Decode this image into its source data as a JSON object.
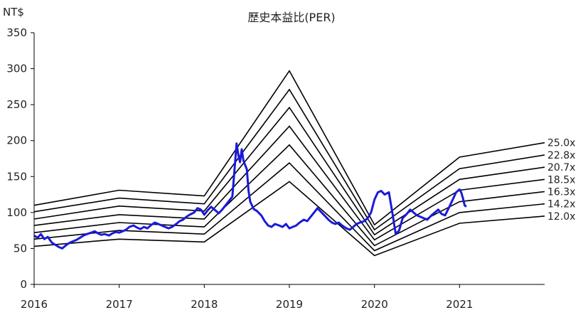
{
  "chart_data": {
    "type": "line",
    "title": "歷史本益比(PER)",
    "ylabel": "NT$",
    "xlabel": "",
    "ylim": [
      0,
      350
    ],
    "yticks": [
      0,
      50,
      100,
      150,
      200,
      250,
      300,
      350
    ],
    "xlim": [
      2016,
      2022
    ],
    "xticks": [
      2016,
      2017,
      2018,
      2019,
      2020,
      2021
    ],
    "grid": false,
    "legend": "none",
    "colors": {
      "price": "#1a1adb",
      "bands": "#000000",
      "axis": "#000000"
    },
    "bands": [
      {
        "name": "25.0x",
        "points": [
          [
            2016,
            110
          ],
          [
            2017,
            131
          ],
          [
            2018,
            123
          ],
          [
            2019,
            297
          ],
          [
            2020,
            83
          ],
          [
            2021,
            177
          ],
          [
            2022,
            197
          ]
        ]
      },
      {
        "name": "22.8x",
        "points": [
          [
            2016,
            101
          ],
          [
            2017,
            120
          ],
          [
            2018,
            112
          ],
          [
            2019,
            271
          ],
          [
            2020,
            76
          ],
          [
            2021,
            161
          ],
          [
            2022,
            180
          ]
        ]
      },
      {
        "name": "20.7x",
        "points": [
          [
            2016,
            91
          ],
          [
            2017,
            109
          ],
          [
            2018,
            102
          ],
          [
            2019,
            246
          ],
          [
            2020,
            69
          ],
          [
            2021,
            146
          ],
          [
            2022,
            163
          ]
        ]
      },
      {
        "name": "18.5x",
        "points": [
          [
            2016,
            82
          ],
          [
            2017,
            97
          ],
          [
            2018,
            91
          ],
          [
            2019,
            220
          ],
          [
            2020,
            62
          ],
          [
            2021,
            131
          ],
          [
            2022,
            146
          ]
        ]
      },
      {
        "name": "16.3x",
        "points": [
          [
            2016,
            72
          ],
          [
            2017,
            86
          ],
          [
            2018,
            80
          ],
          [
            2019,
            194
          ],
          [
            2020,
            54
          ],
          [
            2021,
            115
          ],
          [
            2022,
            129
          ]
        ]
      },
      {
        "name": "14.2x",
        "points": [
          [
            2016,
            63
          ],
          [
            2017,
            75
          ],
          [
            2018,
            70
          ],
          [
            2019,
            169
          ],
          [
            2020,
            47
          ],
          [
            2021,
            100
          ],
          [
            2022,
            112
          ]
        ]
      },
      {
        "name": "12.0x",
        "points": [
          [
            2016,
            53
          ],
          [
            2017,
            63
          ],
          [
            2018,
            59
          ],
          [
            2019,
            143
          ],
          [
            2020,
            40
          ],
          [
            2021,
            85
          ],
          [
            2022,
            95
          ]
        ]
      }
    ],
    "price_series": {
      "points": [
        [
          2016.0,
          68
        ],
        [
          2016.04,
          65
        ],
        [
          2016.08,
          70
        ],
        [
          2016.12,
          63
        ],
        [
          2016.16,
          66
        ],
        [
          2016.21,
          58
        ],
        [
          2016.25,
          55
        ],
        [
          2016.29,
          52
        ],
        [
          2016.33,
          50
        ],
        [
          2016.38,
          55
        ],
        [
          2016.42,
          58
        ],
        [
          2016.46,
          60
        ],
        [
          2016.5,
          62
        ],
        [
          2016.54,
          65
        ],
        [
          2016.58,
          68
        ],
        [
          2016.62,
          70
        ],
        [
          2016.67,
          72
        ],
        [
          2016.71,
          74
        ],
        [
          2016.75,
          71
        ],
        [
          2016.79,
          69
        ],
        [
          2016.83,
          70
        ],
        [
          2016.88,
          68
        ],
        [
          2016.92,
          71
        ],
        [
          2016.96,
          73
        ],
        [
          2017.0,
          72
        ],
        [
          2017.04,
          74
        ],
        [
          2017.08,
          76
        ],
        [
          2017.12,
          80
        ],
        [
          2017.17,
          82
        ],
        [
          2017.21,
          79
        ],
        [
          2017.25,
          77
        ],
        [
          2017.29,
          80
        ],
        [
          2017.33,
          78
        ],
        [
          2017.38,
          83
        ],
        [
          2017.42,
          86
        ],
        [
          2017.46,
          84
        ],
        [
          2017.5,
          82
        ],
        [
          2017.54,
          80
        ],
        [
          2017.58,
          78
        ],
        [
          2017.62,
          80
        ],
        [
          2017.67,
          84
        ],
        [
          2017.71,
          88
        ],
        [
          2017.75,
          90
        ],
        [
          2017.79,
          94
        ],
        [
          2017.83,
          97
        ],
        [
          2017.88,
          100
        ],
        [
          2017.92,
          106
        ],
        [
          2017.96,
          104
        ],
        [
          2018.0,
          97
        ],
        [
          2018.04,
          103
        ],
        [
          2018.08,
          108
        ],
        [
          2018.12,
          104
        ],
        [
          2018.17,
          99
        ],
        [
          2018.21,
          104
        ],
        [
          2018.25,
          110
        ],
        [
          2018.29,
          116
        ],
        [
          2018.33,
          122
        ],
        [
          2018.38,
          196
        ],
        [
          2018.4,
          180
        ],
        [
          2018.42,
          170
        ],
        [
          2018.44,
          188
        ],
        [
          2018.46,
          172
        ],
        [
          2018.5,
          160
        ],
        [
          2018.52,
          130
        ],
        [
          2018.54,
          115
        ],
        [
          2018.58,
          105
        ],
        [
          2018.62,
          102
        ],
        [
          2018.67,
          96
        ],
        [
          2018.71,
          88
        ],
        [
          2018.75,
          82
        ],
        [
          2018.79,
          80
        ],
        [
          2018.83,
          84
        ],
        [
          2018.88,
          82
        ],
        [
          2018.92,
          80
        ],
        [
          2018.96,
          84
        ],
        [
          2019.0,
          78
        ],
        [
          2019.04,
          80
        ],
        [
          2019.08,
          82
        ],
        [
          2019.12,
          86
        ],
        [
          2019.17,
          90
        ],
        [
          2019.21,
          88
        ],
        [
          2019.25,
          94
        ],
        [
          2019.29,
          100
        ],
        [
          2019.33,
          106
        ],
        [
          2019.38,
          100
        ],
        [
          2019.42,
          95
        ],
        [
          2019.46,
          90
        ],
        [
          2019.5,
          86
        ],
        [
          2019.54,
          84
        ],
        [
          2019.58,
          86
        ],
        [
          2019.62,
          82
        ],
        [
          2019.67,
          78
        ],
        [
          2019.71,
          76
        ],
        [
          2019.75,
          80
        ],
        [
          2019.79,
          84
        ],
        [
          2019.83,
          86
        ],
        [
          2019.88,
          88
        ],
        [
          2019.92,
          92
        ],
        [
          2019.96,
          100
        ],
        [
          2020.0,
          118
        ],
        [
          2020.04,
          128
        ],
        [
          2020.08,
          130
        ],
        [
          2020.12,
          125
        ],
        [
          2020.17,
          128
        ],
        [
          2020.21,
          100
        ],
        [
          2020.25,
          70
        ],
        [
          2020.29,
          75
        ],
        [
          2020.33,
          92
        ],
        [
          2020.38,
          98
        ],
        [
          2020.42,
          104
        ],
        [
          2020.46,
          100
        ],
        [
          2020.5,
          96
        ],
        [
          2020.54,
          94
        ],
        [
          2020.58,
          92
        ],
        [
          2020.62,
          90
        ],
        [
          2020.67,
          96
        ],
        [
          2020.71,
          100
        ],
        [
          2020.75,
          104
        ],
        [
          2020.79,
          98
        ],
        [
          2020.83,
          96
        ],
        [
          2020.88,
          108
        ],
        [
          2020.92,
          118
        ],
        [
          2020.96,
          128
        ],
        [
          2021.0,
          132
        ],
        [
          2021.02,
          128
        ],
        [
          2021.04,
          120
        ],
        [
          2021.06,
          110
        ],
        [
          2021.08,
          108
        ]
      ]
    }
  }
}
